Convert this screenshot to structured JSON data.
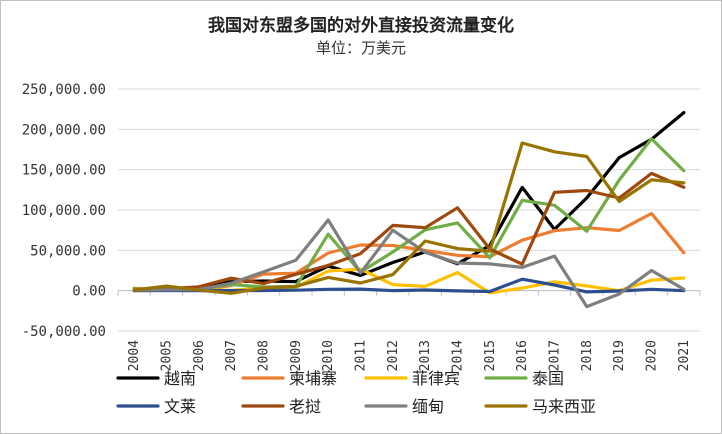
{
  "chart_data": {
    "type": "line",
    "title": "我国对东盟多国的对外直接投资流量变化",
    "subtitle": "单位：万美元",
    "xlabel": "",
    "ylabel": "",
    "ylim": [
      -50000,
      250000
    ],
    "y_ticks": [
      -50000,
      0,
      50000,
      100000,
      150000,
      200000,
      250000
    ],
    "y_tick_labels": [
      "-50,000.00",
      "0.00",
      "50,000.00",
      "100,000.00",
      "150,000.00",
      "200,000.00",
      "250,000.00"
    ],
    "grid": true,
    "legend_position": "bottom",
    "x": [
      "2004",
      "2005",
      "2006",
      "2007",
      "2008",
      "2009",
      "2010",
      "2011",
      "2012",
      "2013",
      "2014",
      "2015",
      "2016",
      "2017",
      "2018",
      "2019",
      "2020",
      "2021"
    ],
    "series": [
      {
        "name": "越南",
        "color": "#000000",
        "values": [
          1700,
          2100,
          4400,
          11100,
          12000,
          11200,
          30500,
          18900,
          34900,
          48100,
          33300,
          56000,
          128000,
          76000,
          115000,
          165000,
          187600,
          220800
        ]
      },
      {
        "name": "柬埔寨",
        "color": "#ed7d31",
        "values": [
          3000,
          500,
          1000,
          6400,
          20500,
          21600,
          46700,
          56600,
          56000,
          49900,
          43800,
          42000,
          62600,
          74400,
          78000,
          74600,
          95700,
          47000
        ]
      },
      {
        "name": "菲律宾",
        "color": "#ffc000",
        "values": [
          0,
          500,
          900,
          450,
          3300,
          4000,
          24400,
          26700,
          7500,
          5400,
          22500,
          -2800,
          3200,
          10900,
          5900,
          0,
          13000,
          15700
        ]
      },
      {
        "name": "泰国",
        "color": "#70ad47",
        "values": [
          2300,
          500,
          1600,
          7600,
          4500,
          5000,
          70000,
          23000,
          47900,
          75500,
          84000,
          40700,
          112000,
          105800,
          73700,
          137200,
          188300,
          148600
        ]
      },
      {
        "name": "文莱",
        "color": "#2e4f8f",
        "values": [
          0,
          150,
          0,
          100,
          180,
          580,
          1650,
          2000,
          100,
          850,
          -330,
          -1000,
          14200,
          7000,
          -1500,
          -400,
          1700,
          0
        ]
      },
      {
        "name": "老挝",
        "color": "#9e480e",
        "values": [
          400,
          2100,
          4800,
          15400,
          8700,
          20300,
          31300,
          45900,
          80900,
          78100,
          102700,
          51700,
          32800,
          122000,
          124200,
          114900,
          145400,
          128200
        ]
      },
      {
        "name": "缅甸",
        "color": "#7f7f7f",
        "values": [
          400,
          1200,
          1300,
          9200,
          23300,
          37700,
          87600,
          21800,
          74900,
          47500,
          34300,
          33200,
          28800,
          42800,
          -19700,
          -4100,
          25000,
          1800
        ]
      },
      {
        "name": "马来西亚",
        "color": "#997300",
        "values": [
          800,
          5700,
          750,
          -3300,
          3400,
          5400,
          16400,
          9500,
          19900,
          61600,
          52100,
          48900,
          183000,
          172100,
          166300,
          110500,
          137500,
          133600
        ]
      }
    ]
  }
}
